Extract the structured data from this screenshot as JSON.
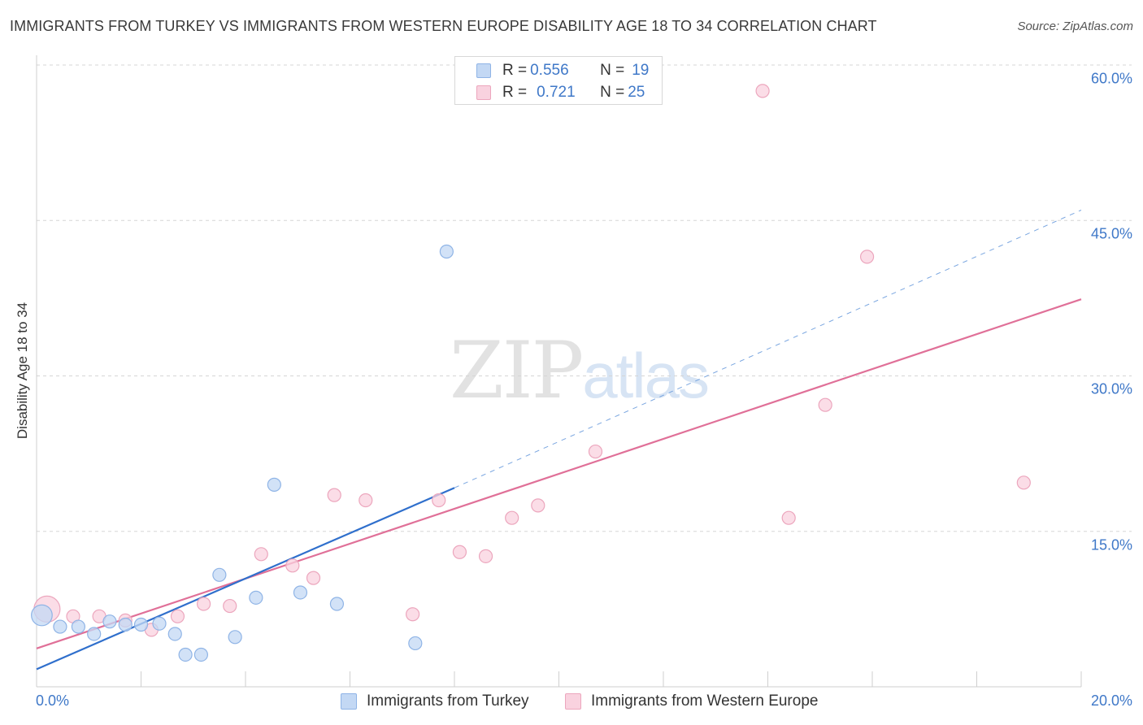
{
  "header": {
    "title": "IMMIGRANTS FROM TURKEY VS IMMIGRANTS FROM WESTERN EUROPE DISABILITY AGE 18 TO 34 CORRELATION CHART",
    "source": "Source: ZipAtlas.com"
  },
  "legend": {
    "turkey": {
      "r_label": "R =",
      "r_value": "0.556",
      "n_label": "N =",
      "n_value": "19"
    },
    "western_europe": {
      "r_label": "R =",
      "r_value": "0.721",
      "n_label": "N =",
      "n_value": "25"
    }
  },
  "watermark": {
    "zip": "ZIP",
    "atlas": "atlas"
  },
  "colors": {
    "turkey_fill": "#c3d8f4",
    "turkey_stroke": "#8fb4e6",
    "turkey_line": "#2f6fcc",
    "we_fill": "#f9d2df",
    "we_stroke": "#eca6bd",
    "we_line": "#e07098",
    "grid": "#d5d5d5",
    "tick_label": "#3f78c8"
  },
  "chart_data": {
    "type": "scatter",
    "title": "IMMIGRANTS FROM TURKEY VS IMMIGRANTS FROM WESTERN EUROPE DISABILITY AGE 18 TO 34 CORRELATION CHART",
    "xlabel": "",
    "ylabel": "Disability Age 18 to 34",
    "xlim": [
      0,
      20
    ],
    "ylim": [
      0,
      60
    ],
    "x_tick_labels": [
      "0.0%",
      "20.0%"
    ],
    "y_ticks": [
      15,
      30,
      45,
      60
    ],
    "y_tick_labels": [
      "15.0%",
      "30.0%",
      "45.0%",
      "60.0%"
    ],
    "legend_position": "top-center",
    "series": [
      {
        "name": "Immigrants from Turkey",
        "r": 0.556,
        "n": 19,
        "points": [
          {
            "x": 0.1,
            "y": 6.9,
            "size": 1.6
          },
          {
            "x": 0.45,
            "y": 5.8
          },
          {
            "x": 0.8,
            "y": 5.8
          },
          {
            "x": 1.1,
            "y": 5.1
          },
          {
            "x": 1.4,
            "y": 6.3
          },
          {
            "x": 1.7,
            "y": 6.0
          },
          {
            "x": 2.0,
            "y": 6.0
          },
          {
            "x": 2.35,
            "y": 6.1
          },
          {
            "x": 2.65,
            "y": 5.1
          },
          {
            "x": 2.85,
            "y": 3.1
          },
          {
            "x": 3.15,
            "y": 3.1
          },
          {
            "x": 3.5,
            "y": 10.8
          },
          {
            "x": 3.8,
            "y": 4.8
          },
          {
            "x": 4.2,
            "y": 8.6
          },
          {
            "x": 4.55,
            "y": 19.5
          },
          {
            "x": 5.05,
            "y": 9.1
          },
          {
            "x": 5.75,
            "y": 8.0
          },
          {
            "x": 7.25,
            "y": 4.2
          },
          {
            "x": 7.85,
            "y": 42.0
          }
        ],
        "trend": {
          "x0": 0,
          "y0": 1.7,
          "x1": 8.0,
          "y1": 19.2,
          "dashed_to_x": 20,
          "dashed_to_y": 46.0
        }
      },
      {
        "name": "Immigrants from Western Europe",
        "r": 0.721,
        "n": 25,
        "points": [
          {
            "x": 0.2,
            "y": 7.5,
            "size": 2.0
          },
          {
            "x": 0.7,
            "y": 6.8
          },
          {
            "x": 1.2,
            "y": 6.8
          },
          {
            "x": 1.7,
            "y": 6.4
          },
          {
            "x": 2.2,
            "y": 5.5
          },
          {
            "x": 2.7,
            "y": 6.8
          },
          {
            "x": 3.2,
            "y": 8.0
          },
          {
            "x": 3.7,
            "y": 7.8
          },
          {
            "x": 4.3,
            "y": 12.8
          },
          {
            "x": 4.9,
            "y": 11.7
          },
          {
            "x": 5.3,
            "y": 10.5
          },
          {
            "x": 5.7,
            "y": 18.5
          },
          {
            "x": 6.3,
            "y": 18.0
          },
          {
            "x": 7.2,
            "y": 7.0
          },
          {
            "x": 7.7,
            "y": 18.0
          },
          {
            "x": 8.1,
            "y": 13.0
          },
          {
            "x": 8.6,
            "y": 12.6
          },
          {
            "x": 9.1,
            "y": 16.3
          },
          {
            "x": 9.6,
            "y": 17.5
          },
          {
            "x": 10.7,
            "y": 22.7
          },
          {
            "x": 13.9,
            "y": 57.5
          },
          {
            "x": 14.4,
            "y": 16.3
          },
          {
            "x": 15.1,
            "y": 27.2
          },
          {
            "x": 15.9,
            "y": 41.5
          },
          {
            "x": 18.9,
            "y": 19.7
          }
        ],
        "trend": {
          "x0": 0,
          "y0": 3.7,
          "x1": 20,
          "y1": 37.4
        }
      }
    ]
  },
  "bottom_legend": {
    "turkey_label": "Immigrants from Turkey",
    "we_label": "Immigrants from Western Europe"
  }
}
